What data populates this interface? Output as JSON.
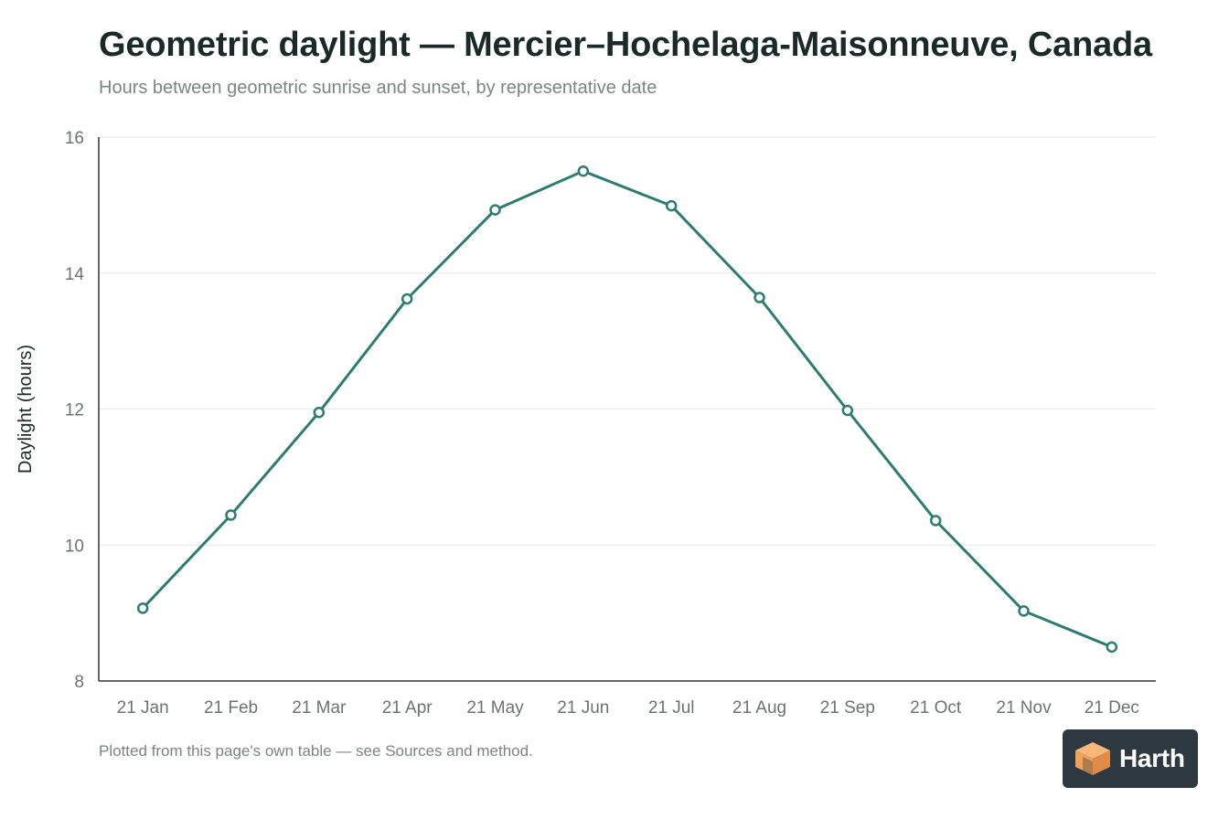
{
  "header": {
    "title": "Geometric daylight — Mercier–Hochelaga-Maisonneuve, Canada",
    "subtitle": "Hours between geometric sunrise and sunset, by representative date"
  },
  "footer": {
    "note": "Plotted from this page's own table — see Sources and method.",
    "logo_text": "Harth"
  },
  "colors": {
    "line": "#2e7b70",
    "axis": "#333333",
    "grid": "#e6e9e8",
    "tick_text": "#6b7370",
    "logo_badge": "#2d3840",
    "logo_orange": "#f2a05a"
  },
  "chart_data": {
    "type": "line",
    "title": "Geometric daylight — Mercier–Hochelaga-Maisonneuve, Canada",
    "subtitle": "Hours between geometric sunrise and sunset, by representative date",
    "xlabel": "",
    "ylabel": "Daylight (hours)",
    "categories": [
      "21 Jan",
      "21 Feb",
      "21 Mar",
      "21 Apr",
      "21 May",
      "21 Jun",
      "21 Jul",
      "21 Aug",
      "21 Sep",
      "21 Oct",
      "21 Nov",
      "21 Dec"
    ],
    "series": [
      {
        "values": [
          9.07,
          10.44,
          11.95,
          13.62,
          14.93,
          15.5,
          14.99,
          13.64,
          11.98,
          10.36,
          9.03,
          8.5
        ]
      }
    ],
    "ylim": [
      8,
      16
    ],
    "yticks": [
      8,
      10,
      12,
      14,
      16
    ],
    "grid": true,
    "legend": "none"
  }
}
